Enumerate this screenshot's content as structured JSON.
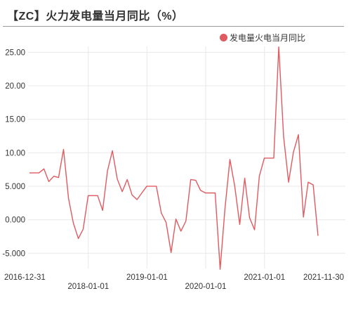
{
  "title": "【ZC】火力发电量当月同比（%）",
  "legend": {
    "label": "发电量火电当月同比",
    "color": "#e05a60"
  },
  "chart_data": {
    "type": "line",
    "title": "【ZC】火力发电量当月同比（%）",
    "xlabel": "",
    "ylabel": "",
    "grid": true,
    "legend_position": "top-right",
    "ylim": [
      -7.5,
      27.5
    ],
    "y_ticks": [
      "25.00",
      "20.00",
      "15.00",
      "10.00",
      "5.000",
      "0.000",
      "-5.000"
    ],
    "y_tick_values": [
      25,
      20,
      15,
      10,
      5,
      0,
      -5
    ],
    "x_ticks_top": [
      "2016-12-31",
      "2019-01-01",
      "2021-01-01",
      "2021-11-30"
    ],
    "x_ticks_bottom": [
      "2018-01-01",
      "2020-01-01"
    ],
    "series": [
      {
        "name": "发电量火电当月同比",
        "color": "#e05a60",
        "x": [
          "2016-12-31",
          "2017-01-31",
          "2017-02-28",
          "2017-03-31",
          "2017-04-30",
          "2017-05-31",
          "2017-06-30",
          "2017-07-31",
          "2017-08-31",
          "2017-09-30",
          "2017-10-31",
          "2017-11-30",
          "2017-12-31",
          "2018-01-31",
          "2018-02-28",
          "2018-03-31",
          "2018-04-30",
          "2018-05-31",
          "2018-06-30",
          "2018-07-31",
          "2018-08-31",
          "2018-09-30",
          "2018-10-31",
          "2018-11-30",
          "2018-12-31",
          "2019-01-31",
          "2019-02-28",
          "2019-03-31",
          "2019-04-30",
          "2019-05-31",
          "2019-06-30",
          "2019-07-31",
          "2019-08-31",
          "2019-09-30",
          "2019-10-31",
          "2019-11-30",
          "2019-12-31",
          "2020-01-31",
          "2020-02-29",
          "2020-03-31",
          "2020-04-30",
          "2020-05-31",
          "2020-06-30",
          "2020-07-31",
          "2020-08-31",
          "2020-09-30",
          "2020-10-31",
          "2020-11-30",
          "2020-12-31",
          "2021-01-31",
          "2021-02-28",
          "2021-03-31",
          "2021-04-30",
          "2021-05-31",
          "2021-06-30",
          "2021-07-31",
          "2021-08-31",
          "2021-09-30",
          "2021-10-31",
          "2021-11-30"
        ],
        "values": [
          7.0,
          7.0,
          7.0,
          7.6,
          5.7,
          6.5,
          6.3,
          10.5,
          3.2,
          -0.5,
          -2.8,
          -1.4,
          3.6,
          3.6,
          3.6,
          1.4,
          7.3,
          10.3,
          6.1,
          4.2,
          6.0,
          3.7,
          3.0,
          4.0,
          5.0,
          5.0,
          5.0,
          1.0,
          -0.4,
          -4.9,
          0.1,
          -1.7,
          -0.2,
          6.0,
          5.9,
          4.4,
          4.0,
          4.0,
          4.0,
          -7.4,
          1.6,
          9.0,
          5.0,
          -0.7,
          6.2,
          0.3,
          -1.5,
          6.5,
          9.2,
          9.2,
          9.2,
          25.8,
          12.4,
          5.6,
          10.1,
          12.7,
          0.4,
          5.6,
          5.2,
          -2.4
        ]
      }
    ]
  }
}
